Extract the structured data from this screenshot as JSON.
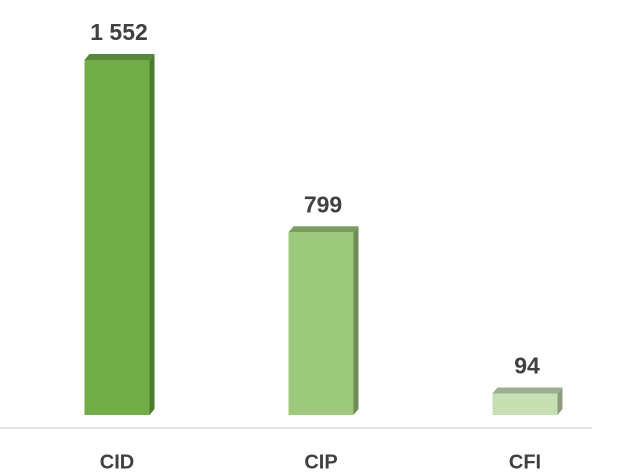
{
  "chart_data": {
    "type": "bar3d",
    "categories": [
      "CID",
      "CIP",
      "CFI"
    ],
    "values": [
      1552,
      799,
      94
    ],
    "value_labels": [
      "1 552",
      "799",
      "94"
    ],
    "colors": [
      "#70ad47",
      "#9dc97c",
      "#c6e0b4"
    ]
  }
}
